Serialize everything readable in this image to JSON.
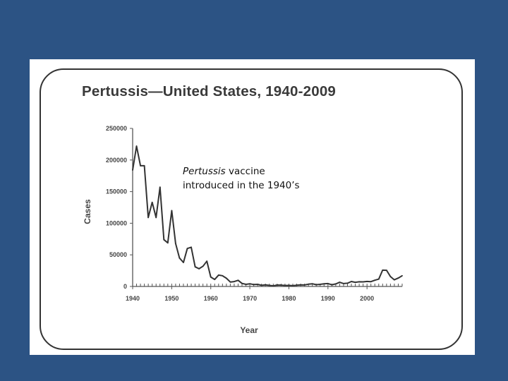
{
  "chart_data": {
    "type": "line",
    "title": "Pertussis—United States, 1940-2009",
    "xlabel": "Year",
    "ylabel": "Cases",
    "xlim": [
      1940,
      2009
    ],
    "ylim": [
      0,
      250000
    ],
    "x_ticks": [
      "1940",
      "1950",
      "1960",
      "1970",
      "1980",
      "1990",
      "2000"
    ],
    "y_ticks": [
      "250000",
      "200000",
      "150000",
      "100000",
      "50000",
      "0"
    ],
    "grid": false,
    "series": [
      {
        "color": "#333333",
        "x": [
          1940,
          1941,
          1942,
          1943,
          1944,
          1945,
          1946,
          1947,
          1948,
          1949,
          1950,
          1951,
          1952,
          1953,
          1954,
          1955,
          1956,
          1957,
          1958,
          1959,
          1960,
          1961,
          1962,
          1963,
          1964,
          1965,
          1966,
          1967,
          1968,
          1969,
          1970,
          1971,
          1972,
          1973,
          1974,
          1975,
          1976,
          1977,
          1978,
          1979,
          1980,
          1981,
          1982,
          1983,
          1984,
          1985,
          1986,
          1987,
          1988,
          1989,
          1990,
          1991,
          1992,
          1993,
          1994,
          1995,
          1996,
          1997,
          1998,
          1999,
          2000,
          2001,
          2002,
          2003,
          2004,
          2005,
          2006,
          2007,
          2008,
          2009
        ],
        "values": [
          184000,
          222000,
          191000,
          191000,
          109000,
          133000,
          109000,
          157000,
          74000,
          69000,
          120000,
          68000,
          45000,
          38000,
          60000,
          62000,
          31000,
          28000,
          32000,
          40000,
          15000,
          11000,
          18000,
          17000,
          13000,
          7000,
          7700,
          9700,
          4800,
          3300,
          4200,
          3000,
          3300,
          1800,
          2400,
          1700,
          1000,
          2200,
          2100,
          1600,
          1700,
          1200,
          1900,
          2500,
          2300,
          3600,
          4200,
          2800,
          3400,
          4100,
          4600,
          2700,
          4000,
          6600,
          4600,
          5100,
          7800,
          6600,
          7400,
          7300,
          7900,
          7600,
          9800,
          11600,
          25800,
          25600,
          15600,
          10500,
          13300,
          17000
        ]
      }
    ],
    "annotation": {
      "italic": "Pertussis",
      "line1_rest": " vaccine",
      "line2": "introduced in the 1940’s"
    }
  }
}
